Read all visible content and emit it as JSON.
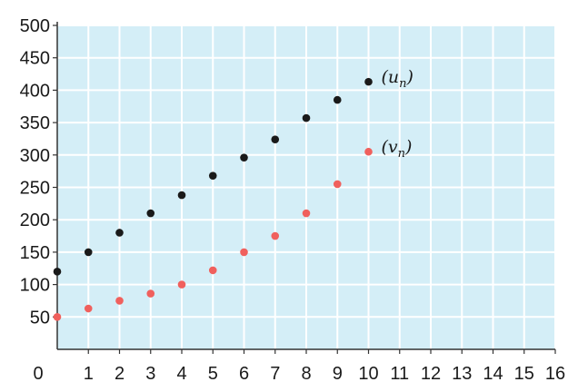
{
  "chart_data": {
    "type": "scatter",
    "title": "",
    "xlabel": "",
    "ylabel": "",
    "xlim": [
      0,
      16
    ],
    "ylim": [
      0,
      500
    ],
    "x_ticks": [
      0,
      1,
      2,
      3,
      4,
      5,
      6,
      7,
      8,
      9,
      10,
      11,
      12,
      13,
      14,
      15,
      16
    ],
    "y_ticks": [
      50,
      100,
      150,
      200,
      250,
      300,
      350,
      400,
      450,
      500
    ],
    "grid": true,
    "colors": {
      "plot_background": "#d4eef7",
      "grid": "#ffffff",
      "axis": "#333333"
    },
    "series": [
      {
        "name": "(un)",
        "name_base": "(u",
        "name_sub": "n",
        "name_end": ")",
        "color": "#1a1a1a",
        "x": [
          0,
          1,
          2,
          3,
          4,
          5,
          6,
          7,
          8,
          9,
          10
        ],
        "y": [
          120,
          150,
          180,
          210,
          238,
          268,
          296,
          324,
          357,
          385,
          413
        ]
      },
      {
        "name": "(vn)",
        "name_base": "(v",
        "name_sub": "n",
        "name_end": ")",
        "color": "#f0605d",
        "x": [
          0,
          1,
          2,
          3,
          4,
          5,
          6,
          7,
          8,
          9,
          10
        ],
        "y": [
          50,
          63,
          75,
          86,
          100,
          122,
          150,
          175,
          210,
          255,
          305
        ]
      }
    ]
  }
}
